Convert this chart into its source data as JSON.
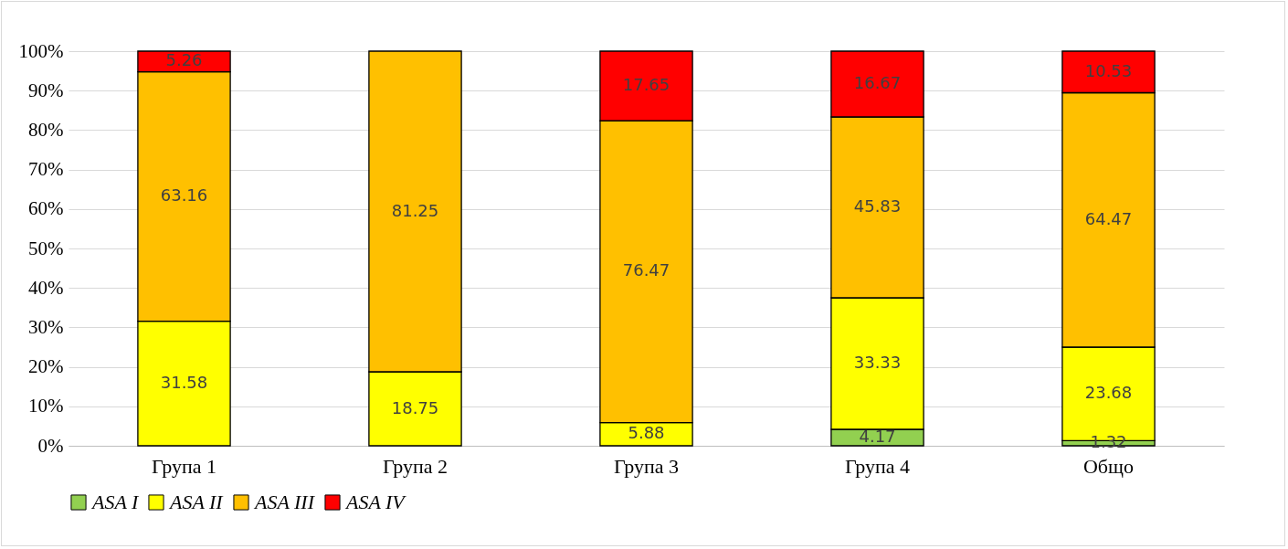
{
  "chart_data": {
    "type": "bar",
    "stacked": true,
    "categories": [
      "Група 1",
      "Група 2",
      "Група 3",
      "Група 4",
      "Общо"
    ],
    "series": [
      {
        "name": "ASA I",
        "color": "#92d050",
        "values": [
          null,
          null,
          null,
          4.17,
          1.32
        ]
      },
      {
        "name": "ASA II",
        "color": "#ffff00",
        "values": [
          31.58,
          18.75,
          5.88,
          33.33,
          23.68
        ]
      },
      {
        "name": "ASA III",
        "color": "#ffc000",
        "values": [
          63.16,
          81.25,
          76.47,
          45.83,
          64.47
        ]
      },
      {
        "name": "ASA IV",
        "color": "#ff0000",
        "values": [
          5.26,
          null,
          17.65,
          16.67,
          10.53
        ]
      }
    ],
    "ylim": [
      0,
      100
    ],
    "yticks": [
      {
        "value": 0,
        "label": "0%"
      },
      {
        "value": 10,
        "label": "10%"
      },
      {
        "value": 20,
        "label": "20%"
      },
      {
        "value": 30,
        "label": "30%"
      },
      {
        "value": 40,
        "label": "40%"
      },
      {
        "value": 50,
        "label": "50%"
      },
      {
        "value": 60,
        "label": "60%"
      },
      {
        "value": 70,
        "label": "70%"
      },
      {
        "value": 80,
        "label": "80%"
      },
      {
        "value": 90,
        "label": "90%"
      },
      {
        "value": 100,
        "label": "100%"
      }
    ],
    "grid": "y",
    "legend": "bottom",
    "data_labels": true
  }
}
